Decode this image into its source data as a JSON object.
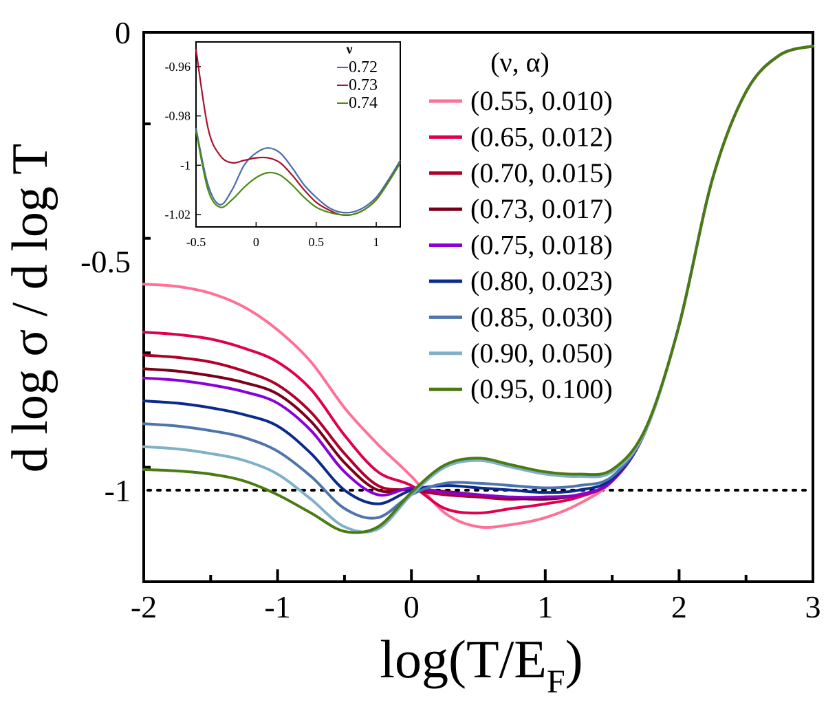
{
  "chart_data": {
    "type": "line",
    "xlabel": "log(T/E",
    "xlabel_sub": "F",
    "xlabel_close": ")",
    "ylabel": "d log σ / d log T",
    "xlim": [
      -2,
      3
    ],
    "ylim": [
      -1.2,
      0
    ],
    "x_ticks": [
      -2,
      -1,
      0,
      1,
      2,
      3
    ],
    "x_tick_labels": [
      "-2",
      "-1",
      "0",
      "1",
      "2",
      "3"
    ],
    "y_ticks": [
      -1,
      -0.5,
      0
    ],
    "y_tick_labels": [
      "-1",
      "-0.5",
      "0"
    ],
    "reference_line": -1,
    "legend_title": "(ν, α)",
    "legend_position": "top-right",
    "x": [
      -2.0,
      -1.75,
      -1.5,
      -1.25,
      -1.0,
      -0.75,
      -0.5,
      -0.25,
      0.0,
      0.25,
      0.5,
      0.75,
      1.0,
      1.25,
      1.5,
      1.75,
      2.0,
      2.25,
      2.5,
      2.75,
      3.0
    ],
    "series": [
      {
        "name": "(0.55, 0.010)",
        "color": "#ff7096",
        "values": [
          -0.55,
          -0.555,
          -0.57,
          -0.6,
          -0.65,
          -0.72,
          -0.82,
          -0.9,
          -0.97,
          -1.05,
          -1.08,
          -1.075,
          -1.06,
          -1.03,
          -0.98,
          -0.87,
          -0.64,
          -0.32,
          -0.13,
          -0.05,
          -0.03
        ]
      },
      {
        "name": "(0.65, 0.012)",
        "color": "#e0004e",
        "values": [
          -0.655,
          -0.66,
          -0.67,
          -0.69,
          -0.72,
          -0.78,
          -0.88,
          -0.96,
          -0.99,
          -1.04,
          -1.05,
          -1.04,
          -1.03,
          -1.015,
          -0.98,
          -0.87,
          -0.64,
          -0.32,
          -0.13,
          -0.05,
          -0.03
        ]
      },
      {
        "name": "(0.70, 0.015)",
        "color": "#b0002a",
        "values": [
          -0.705,
          -0.71,
          -0.72,
          -0.74,
          -0.77,
          -0.83,
          -0.92,
          -0.99,
          -1.0,
          -1.01,
          -1.015,
          -1.02,
          -1.015,
          -1.01,
          -0.98,
          -0.87,
          -0.64,
          -0.32,
          -0.13,
          -0.05,
          -0.03
        ]
      },
      {
        "name": "(0.73, 0.017)",
        "color": "#7a0018",
        "values": [
          -0.735,
          -0.74,
          -0.75,
          -0.765,
          -0.79,
          -0.85,
          -0.94,
          -1.0,
          -0.997,
          -1.003,
          -1.01,
          -1.017,
          -1.02,
          -1.01,
          -0.98,
          -0.87,
          -0.64,
          -0.32,
          -0.13,
          -0.05,
          -0.03
        ]
      },
      {
        "name": "(0.75, 0.018)",
        "color": "#8a00d8",
        "values": [
          -0.755,
          -0.76,
          -0.77,
          -0.785,
          -0.81,
          -0.87,
          -0.96,
          -1.01,
          -0.995,
          -1.005,
          -1.01,
          -1.015,
          -1.015,
          -1.01,
          -0.98,
          -0.87,
          -0.64,
          -0.32,
          -0.13,
          -0.05,
          -0.03
        ]
      },
      {
        "name": "(0.80, 0.023)",
        "color": "#0a2a8c",
        "values": [
          -0.805,
          -0.81,
          -0.82,
          -0.835,
          -0.86,
          -0.92,
          -1.0,
          -1.03,
          -1.0,
          -0.99,
          -0.995,
          -1.0,
          -1.005,
          -1.0,
          -0.975,
          -0.87,
          -0.64,
          -0.32,
          -0.13,
          -0.05,
          -0.03
        ]
      },
      {
        "name": "(0.85, 0.030)",
        "color": "#4e74ae",
        "values": [
          -0.855,
          -0.86,
          -0.87,
          -0.885,
          -0.915,
          -0.97,
          -1.04,
          -1.06,
          -1.01,
          -0.985,
          -0.985,
          -0.99,
          -0.995,
          -0.99,
          -0.97,
          -0.87,
          -0.64,
          -0.32,
          -0.13,
          -0.05,
          -0.03
        ]
      },
      {
        "name": "(0.90, 0.050)",
        "color": "#7fb0c8",
        "values": [
          -0.905,
          -0.91,
          -0.92,
          -0.935,
          -0.965,
          -1.02,
          -1.08,
          -1.085,
          -1.01,
          -0.95,
          -0.935,
          -0.95,
          -0.965,
          -0.97,
          -0.96,
          -0.87,
          -0.64,
          -0.32,
          -0.13,
          -0.05,
          -0.03
        ]
      },
      {
        "name": "(0.95, 0.100)",
        "color": "#4a7a10",
        "values": [
          -0.955,
          -0.958,
          -0.965,
          -0.98,
          -1.01,
          -1.05,
          -1.09,
          -1.08,
          -1.005,
          -0.945,
          -0.93,
          -0.945,
          -0.96,
          -0.965,
          -0.955,
          -0.865,
          -0.64,
          -0.32,
          -0.13,
          -0.05,
          -0.03
        ]
      }
    ],
    "inset": {
      "xlim": [
        -0.5,
        1.2
      ],
      "ylim": [
        -1.025,
        -0.95
      ],
      "x_ticks": [
        -0.5,
        0,
        0.5,
        1
      ],
      "x_tick_labels": [
        "-0.5",
        "0",
        "0.5",
        "1"
      ],
      "y_ticks": [
        -1.02,
        -1.0,
        -0.98,
        -0.96
      ],
      "y_tick_labels": [
        "-1.02",
        "-1",
        "-0.98",
        "-0.96"
      ],
      "legend_title": "ν",
      "x": [
        -0.5,
        -0.4,
        -0.3,
        -0.2,
        -0.1,
        0.0,
        0.1,
        0.2,
        0.3,
        0.4,
        0.5,
        0.6,
        0.7,
        0.8,
        0.9,
        1.0,
        1.1,
        1.2
      ],
      "series": [
        {
          "name": "0.72",
          "color": "#4a6aac",
          "values": [
            -0.985,
            -1.008,
            -1.016,
            -1.01,
            -1.0,
            -0.995,
            -0.993,
            -0.995,
            -1.001,
            -1.008,
            -1.013,
            -1.017,
            -1.019,
            -1.019,
            -1.017,
            -1.013,
            -1.006,
            -0.998
          ]
        },
        {
          "name": "0.73",
          "color": "#a8102c",
          "values": [
            -0.953,
            -0.985,
            -0.996,
            -0.999,
            -0.998,
            -0.997,
            -0.997,
            -0.999,
            -1.004,
            -1.01,
            -1.015,
            -1.018,
            -1.02,
            -1.02,
            -1.018,
            -1.014,
            -1.007,
            -0.999
          ]
        },
        {
          "name": "0.74",
          "color": "#4a8a10",
          "values": [
            -0.986,
            -1.01,
            -1.017,
            -1.014,
            -1.009,
            -1.005,
            -1.003,
            -1.004,
            -1.008,
            -1.013,
            -1.017,
            -1.019,
            -1.02,
            -1.02,
            -1.018,
            -1.014,
            -1.007,
            -0.999
          ]
        }
      ]
    }
  }
}
